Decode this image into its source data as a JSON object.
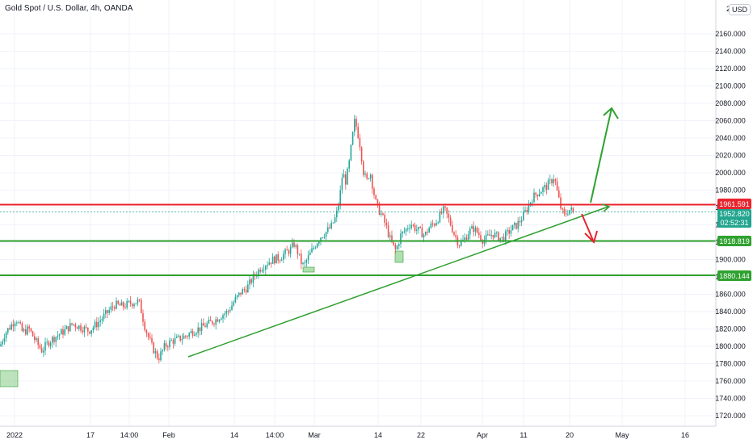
{
  "header": {
    "title": "Gold Spot / U.S. Dollar, 4h, OANDA",
    "currency": "USD"
  },
  "price_labels": {
    "resistance": "1961.591",
    "current": "1952.820",
    "countdown": "02:52:31",
    "support_1": "1918.819",
    "support_2": "1880.144"
  },
  "colors": {
    "up": "#26a69a",
    "down": "#ef5350",
    "resistance": "#e8242e",
    "support": "#2fa12f",
    "current": "#22a58f"
  },
  "chart_data": {
    "type": "candlestick",
    "title": "Gold Spot / U.S. Dollar, 4h, OANDA",
    "ylim": [
      1710,
      2180
    ],
    "y_ticks": [
      1720,
      1740,
      1760,
      1780,
      1800,
      1820,
      1840,
      1860,
      1880,
      1900,
      1920,
      1940,
      1960,
      1980,
      2000,
      2020,
      2040,
      2060,
      2080,
      2100,
      2120,
      2140,
      2160
    ],
    "y_tick_labels": [
      "1720.000",
      "1740.000",
      "1760.000",
      "1780.000",
      "1800.000",
      "1820.000",
      "1840.000",
      "1860.000",
      "1880.000",
      "1900.000",
      "1920.000",
      "1940.000",
      "1960.000",
      "1980.000",
      "2000.000",
      "2020.000",
      "2040.000",
      "2060.000",
      "2080.000",
      "2100.000",
      "2120.000",
      "2140.000",
      "2160.000"
    ],
    "x_tick_labels": [
      "2022",
      "17",
      "14:00",
      "Feb",
      "14",
      "14:00",
      "Mar",
      "14",
      "22",
      "Apr",
      "11",
      "20",
      "May",
      "16"
    ],
    "close_path": [
      [
        0,
        1800
      ],
      [
        6,
        1815
      ],
      [
        12,
        1822
      ],
      [
        20,
        1832
      ],
      [
        28,
        1816
      ],
      [
        36,
        1820
      ],
      [
        44,
        1806
      ],
      [
        52,
        1795
      ],
      [
        60,
        1805
      ],
      [
        70,
        1812
      ],
      [
        80,
        1818
      ],
      [
        90,
        1826
      ],
      [
        100,
        1822
      ],
      [
        110,
        1818
      ],
      [
        120,
        1826
      ],
      [
        132,
        1838
      ],
      [
        142,
        1848
      ],
      [
        152,
        1846
      ],
      [
        162,
        1850
      ],
      [
        172,
        1852
      ],
      [
        180,
        1820
      ],
      [
        188,
        1800
      ],
      [
        196,
        1786
      ],
      [
        204,
        1800
      ],
      [
        212,
        1806
      ],
      [
        220,
        1808
      ],
      [
        230,
        1812
      ],
      [
        240,
        1818
      ],
      [
        250,
        1822
      ],
      [
        258,
        1826
      ],
      [
        266,
        1830
      ],
      [
        274,
        1836
      ],
      [
        282,
        1840
      ],
      [
        290,
        1852
      ],
      [
        298,
        1862
      ],
      [
        306,
        1868
      ],
      [
        314,
        1880
      ],
      [
        322,
        1890
      ],
      [
        330,
        1896
      ],
      [
        338,
        1900
      ],
      [
        346,
        1902
      ],
      [
        354,
        1908
      ],
      [
        360,
        1912
      ],
      [
        364,
        1918
      ],
      [
        368,
        1910
      ],
      [
        372,
        1898
      ],
      [
        376,
        1892
      ],
      [
        380,
        1900
      ],
      [
        386,
        1910
      ],
      [
        392,
        1920
      ],
      [
        398,
        1928
      ],
      [
        404,
        1932
      ],
      [
        410,
        1938
      ],
      [
        416,
        1950
      ],
      [
        420,
        1968
      ],
      [
        424,
        2000
      ],
      [
        428,
        1990
      ],
      [
        432,
        2010
      ],
      [
        436,
        2040
      ],
      [
        439,
        2060
      ],
      [
        442,
        2050
      ],
      [
        446,
        2030
      ],
      [
        450,
        2000
      ],
      [
        454,
        1990
      ],
      [
        458,
        2002
      ],
      [
        462,
        1980
      ],
      [
        466,
        1962
      ],
      [
        472,
        1952
      ],
      [
        478,
        1938
      ],
      [
        484,
        1920
      ],
      [
        490,
        1910
      ],
      [
        496,
        1928
      ],
      [
        502,
        1934
      ],
      [
        508,
        1942
      ],
      [
        514,
        1936
      ],
      [
        520,
        1932
      ],
      [
        526,
        1928
      ],
      [
        532,
        1938
      ],
      [
        538,
        1942
      ],
      [
        544,
        1950
      ],
      [
        550,
        1958
      ],
      [
        556,
        1945
      ],
      [
        562,
        1930
      ],
      [
        568,
        1918
      ],
      [
        574,
        1922
      ],
      [
        580,
        1932
      ],
      [
        586,
        1936
      ],
      [
        592,
        1930
      ],
      [
        598,
        1922
      ],
      [
        604,
        1926
      ],
      [
        610,
        1930
      ],
      [
        616,
        1926
      ],
      [
        622,
        1924
      ],
      [
        628,
        1930
      ],
      [
        634,
        1936
      ],
      [
        640,
        1940
      ],
      [
        646,
        1948
      ],
      [
        652,
        1958
      ],
      [
        658,
        1970
      ],
      [
        664,
        1976
      ],
      [
        670,
        1980
      ],
      [
        676,
        1984
      ],
      [
        682,
        1990
      ],
      [
        686,
        1996
      ],
      [
        690,
        1976
      ],
      [
        694,
        1960
      ],
      [
        698,
        1950
      ],
      [
        702,
        1955
      ],
      [
        706,
        1958
      ],
      [
        710,
        1953
      ]
    ],
    "annotations": [
      {
        "label": "resistance",
        "price": 1961.591
      },
      {
        "label": "support",
        "price": 1918.819
      },
      {
        "label": "support",
        "price": 1880.144
      },
      {
        "label": "trendline",
        "from": [
          "Feb",
          1788
        ],
        "to": [
          "Apr 20+",
          1958
        ]
      },
      {
        "label": "bullish arrow",
        "target": 2070
      },
      {
        "label": "bearish arrow",
        "target": 1913
      }
    ]
  }
}
